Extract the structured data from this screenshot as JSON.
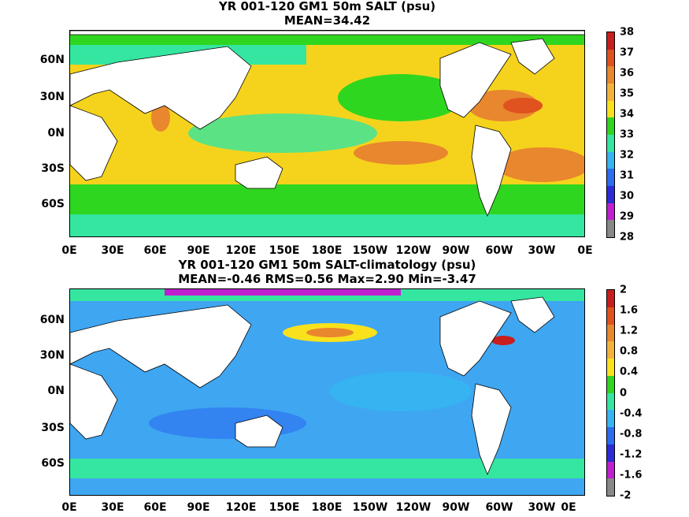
{
  "panels": [
    {
      "title_line1": "YR 001-120 GM1 50m SALT (psu)",
      "title_line2": "MEAN=34.42",
      "ocean_color": "#f5d31c",
      "colorbar": {
        "labels": [
          "38",
          "37",
          "36",
          "35",
          "34",
          "33",
          "32",
          "31",
          "30",
          "29",
          "28"
        ],
        "colors": [
          "#c81e1e",
          "#e0521e",
          "#e8872e",
          "#f3b33a",
          "#f9e21c",
          "#2fd61f",
          "#35e6a0",
          "#36b4f2",
          "#2b6cf0",
          "#2b2bd8",
          "#c01fd0",
          "#888888"
        ]
      }
    },
    {
      "title_line1": "YR 001-120 GM1 50m SALT-climatology (psu)",
      "title_line2": "MEAN=-0.46   RMS=0.56   Max=2.90   Min=-3.47",
      "ocean_color": "#3fa6f2",
      "colorbar": {
        "labels": [
          "2",
          "1.6",
          "1.2",
          "0.8",
          "0.4",
          "0",
          "-0.4",
          "-0.8",
          "-1.2",
          "-1.6",
          "-2"
        ],
        "colors": [
          "#c81e1e",
          "#e0521e",
          "#e8872e",
          "#f3b33a",
          "#f9e21c",
          "#2fd61f",
          "#35e6a0",
          "#36b4f2",
          "#2b6cf0",
          "#2b2bd8",
          "#c01fd0",
          "#888888"
        ]
      }
    }
  ],
  "x_ticks": [
    "0E",
    "30E",
    "60E",
    "90E",
    "120E",
    "150E",
    "180E",
    "150W",
    "120W",
    "90W",
    "60W",
    "30W",
    "0E"
  ],
  "y_ticks": [
    "60N",
    "30N",
    "0N",
    "30S",
    "60S"
  ]
}
